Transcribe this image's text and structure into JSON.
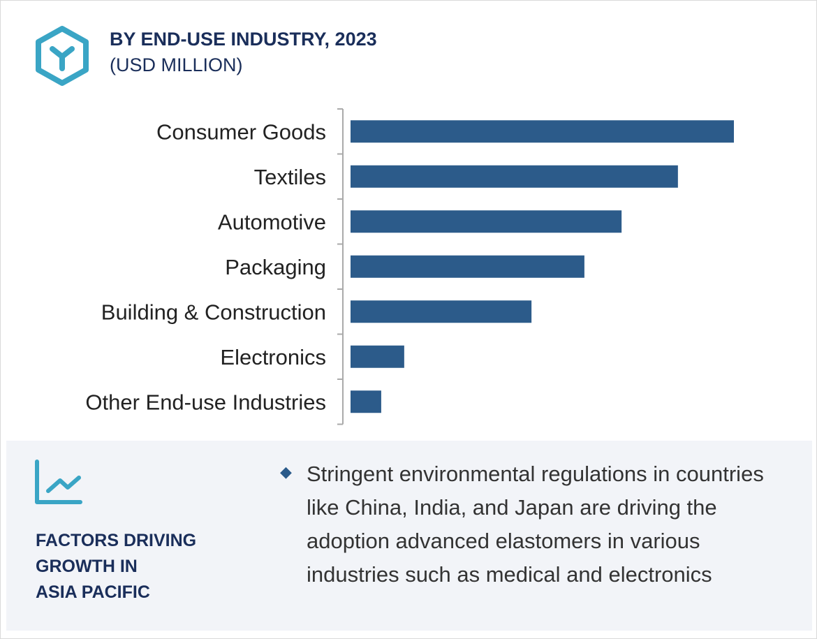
{
  "header": {
    "title": "BY END-USE INDUSTRY, 2023",
    "subtitle": "(USD MILLION)",
    "icon": "cube-icon"
  },
  "chart_data": {
    "type": "bar",
    "orientation": "horizontal",
    "title": "BY END-USE INDUSTRY, 2023",
    "ylabel": "(USD MILLION)",
    "categories": [
      "Consumer Goods",
      "Textiles",
      "Automotive",
      "Packaging",
      "Building & Construction",
      "Electronics",
      "Other End-use Industries"
    ],
    "values": [
      100,
      85.4,
      70.7,
      61,
      47.2,
      14,
      8
    ],
    "note": "relative values, no axis scale shown",
    "xlim": [
      0,
      100
    ],
    "grid": false,
    "color": "#2c5b8a"
  },
  "footer": {
    "icon": "line-chart-icon",
    "heading_lines": [
      "FACTORS DRIVING",
      "GROWTH IN",
      "ASIA PACIFIC"
    ],
    "bullet_icon": "diamond-icon",
    "bullet": "Stringent environmental regulations in countries like China, India, and Japan are driving the adoption advanced elastomers in various industries such as medical and electronics"
  }
}
